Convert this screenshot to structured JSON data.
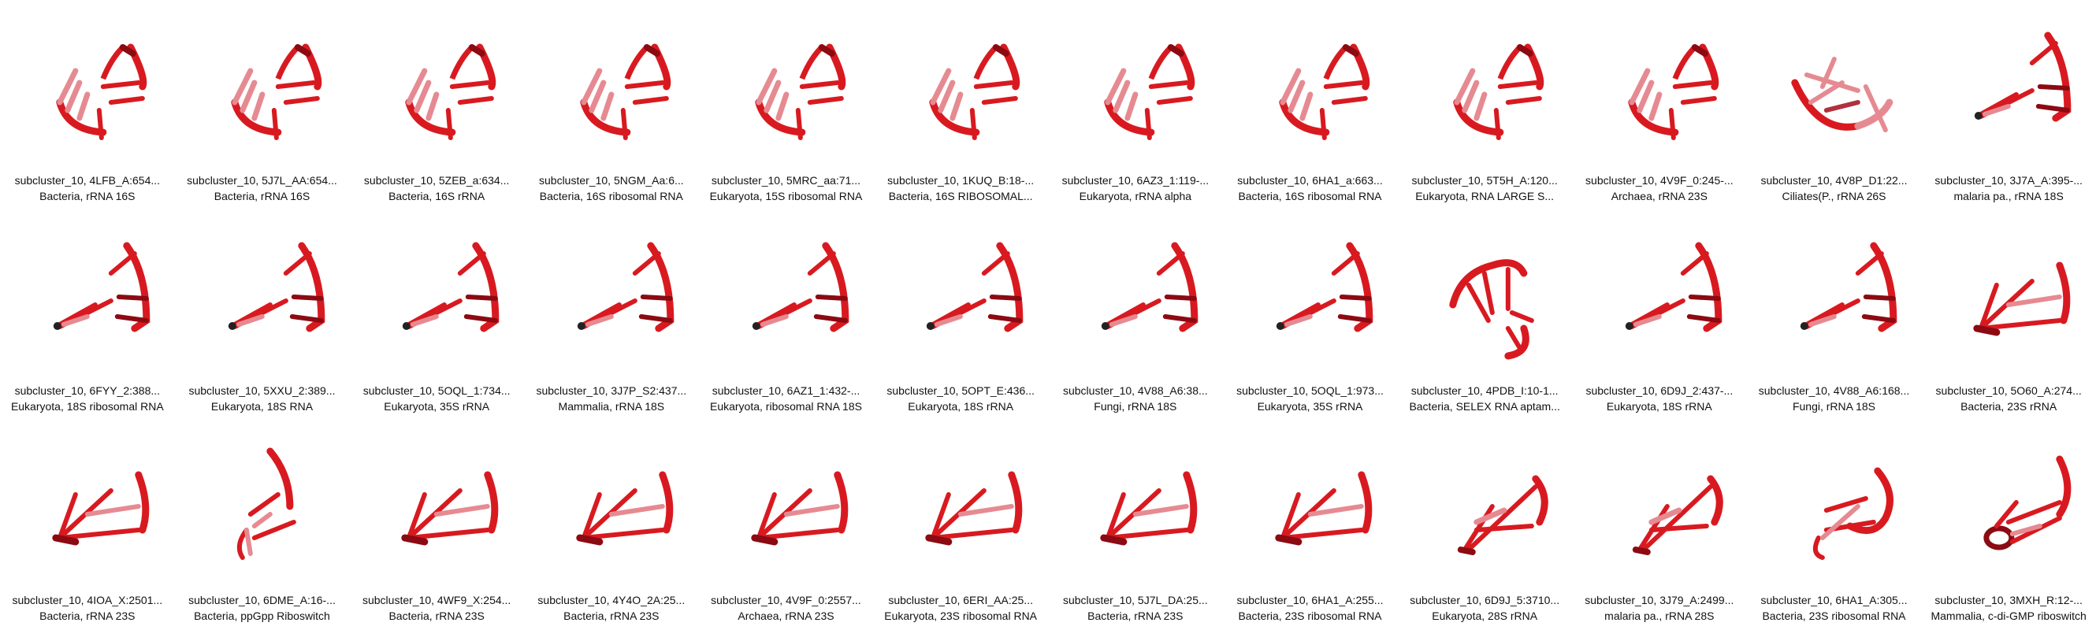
{
  "colors": {
    "dark": "#8c0a12",
    "red": "#d81a20",
    "mid": "#b0313c",
    "pale": "#e68a92"
  },
  "items": [
    {
      "id": "subcluster_10, 4LFB_A:654...",
      "desc": "Bacteria, rRNA 16S",
      "motif": "a"
    },
    {
      "id": "subcluster_10, 5J7L_AA:654...",
      "desc": "Bacteria, rRNA 16S",
      "motif": "a"
    },
    {
      "id": "subcluster_10, 5ZEB_a:634...",
      "desc": "Bacteria, 16S rRNA",
      "motif": "a"
    },
    {
      "id": "subcluster_10, 5NGM_Aa:6...",
      "desc": "Bacteria, 16S ribosomal RNA",
      "motif": "a"
    },
    {
      "id": "subcluster_10, 5MRC_aa:71...",
      "desc": "Eukaryota, 15S ribosomal RNA",
      "motif": "a"
    },
    {
      "id": "subcluster_10, 1KUQ_B:18-...",
      "desc": "Bacteria, 16S RIBOSOMAL...",
      "motif": "a"
    },
    {
      "id": "subcluster_10, 6AZ3_1:119-...",
      "desc": "Eukaryota, rRNA alpha",
      "motif": "a"
    },
    {
      "id": "subcluster_10, 6HA1_a:663...",
      "desc": "Bacteria, 16S ribosomal RNA",
      "motif": "a"
    },
    {
      "id": "subcluster_10, 5T5H_A:120...",
      "desc": "Eukaryota, RNA LARGE S...",
      "motif": "a"
    },
    {
      "id": "subcluster_10, 4V9F_0:245-...",
      "desc": "Archaea, rRNA 23S",
      "motif": "a"
    },
    {
      "id": "subcluster_10, 4V8P_D1:22...",
      "desc": "Ciliates(P., rRNA 26S",
      "motif": "c"
    },
    {
      "id": "subcluster_10, 3J7A_A:395-...",
      "desc": "malaria pa., rRNA 18S",
      "motif": "b"
    },
    {
      "id": "subcluster_10, 6FYY_2:388...",
      "desc": "Eukaryota, 18S ribosomal RNA",
      "motif": "b"
    },
    {
      "id": "subcluster_10, 5XXU_2:389...",
      "desc": "Eukaryota, 18S RNA",
      "motif": "b"
    },
    {
      "id": "subcluster_10, 5OQL_1:734...",
      "desc": "Eukaryota, 35S rRNA",
      "motif": "b"
    },
    {
      "id": "subcluster_10, 3J7P_S2:437...",
      "desc": "Mammalia, rRNA 18S",
      "motif": "b"
    },
    {
      "id": "subcluster_10, 6AZ1_1:432-...",
      "desc": "Eukaryota, ribosomal RNA 18S",
      "motif": "b"
    },
    {
      "id": "subcluster_10, 5OPT_E:436...",
      "desc": "Eukaryota, 18S rRNA",
      "motif": "b"
    },
    {
      "id": "subcluster_10, 4V88_A6:38...",
      "desc": "Fungi, rRNA 18S",
      "motif": "b"
    },
    {
      "id": "subcluster_10, 5OQL_1:973...",
      "desc": "Eukaryota, 35S rRNA",
      "motif": "b"
    },
    {
      "id": "subcluster_10, 4PDB_I:10-1...",
      "desc": "Bacteria, SELEX RNA aptam...",
      "motif": "d"
    },
    {
      "id": "subcluster_10, 6D9J_2:437-...",
      "desc": "Eukaryota, 18S rRNA",
      "motif": "b"
    },
    {
      "id": "subcluster_10, 4V88_A6:168...",
      "desc": "Fungi, rRNA 18S",
      "motif": "b"
    },
    {
      "id": "subcluster_10, 5O60_A:274...",
      "desc": "Bacteria, 23S rRNA",
      "motif": "e"
    },
    {
      "id": "subcluster_10, 4IOA_X:2501...",
      "desc": "Bacteria, rRNA 23S",
      "motif": "e"
    },
    {
      "id": "subcluster_10, 6DME_A:16-...",
      "desc": "Bacteria, ppGpp Riboswitch",
      "motif": "f"
    },
    {
      "id": "subcluster_10, 4WF9_X:254...",
      "desc": "Bacteria, rRNA 23S",
      "motif": "e"
    },
    {
      "id": "subcluster_10, 4Y4O_2A:25...",
      "desc": "Bacteria, rRNA 23S",
      "motif": "e"
    },
    {
      "id": "subcluster_10, 4V9F_0:2557...",
      "desc": "Archaea, rRNA 23S",
      "motif": "e"
    },
    {
      "id": "subcluster_10, 6ERI_AA:25...",
      "desc": "Eukaryota, 23S ribosomal RNA",
      "motif": "e"
    },
    {
      "id": "subcluster_10, 5J7L_DA:25...",
      "desc": "Bacteria, rRNA 23S",
      "motif": "e"
    },
    {
      "id": "subcluster_10, 6HA1_A:255...",
      "desc": "Bacteria, 23S ribosomal RNA",
      "motif": "e"
    },
    {
      "id": "subcluster_10, 6D9J_5:3710...",
      "desc": "Eukaryota, 28S rRNA",
      "motif": "g"
    },
    {
      "id": "subcluster_10, 3J79_A:2499...",
      "desc": "malaria pa., rRNA 28S",
      "motif": "g"
    },
    {
      "id": "subcluster_10, 6HA1_A:305...",
      "desc": "Bacteria, 23S ribosomal RNA",
      "motif": "h"
    },
    {
      "id": "subcluster_10, 3MXH_R:12-...",
      "desc": "Mammalia, c-di-GMP riboswitch",
      "motif": "i"
    }
  ]
}
